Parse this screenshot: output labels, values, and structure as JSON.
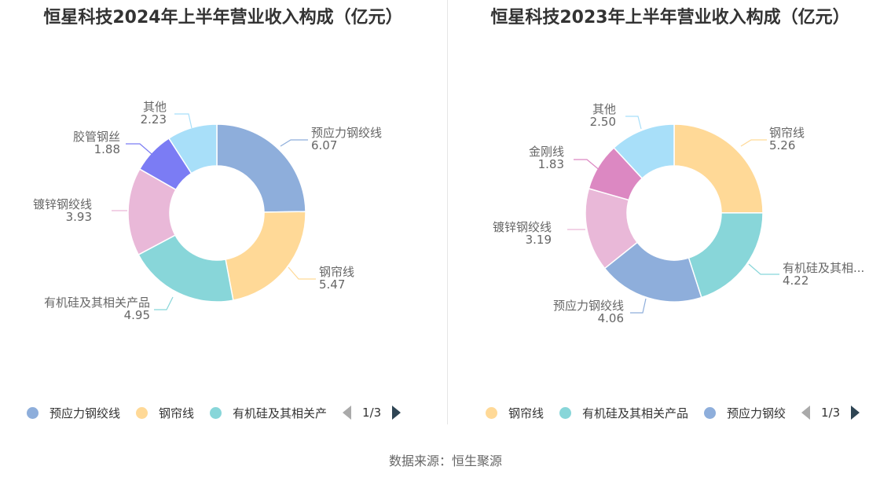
{
  "chart_data": [
    {
      "type": "pie",
      "title": "恒星科技2024年上半年营业收入构成（亿元）",
      "slices": [
        {
          "label": "预应力钢绞线",
          "value": 6.07,
          "value_text": "6.07",
          "color": "#8eaedb"
        },
        {
          "label": "钢帘线",
          "value": 5.47,
          "value_text": "5.47",
          "color": "#ffd997"
        },
        {
          "label": "有机硅及其相关产品",
          "value": 4.95,
          "value_text": "4.95",
          "color": "#88d6d9"
        },
        {
          "label": "镀锌钢绞线",
          "value": 3.93,
          "value_text": "3.93",
          "color": "#e9b8d8"
        },
        {
          "label": "胶管钢丝",
          "value": 1.88,
          "value_text": "1.88",
          "color": "#7b7cf4"
        },
        {
          "label": "其他",
          "value": 2.23,
          "value_text": "2.23",
          "color": "#a8dff9"
        }
      ],
      "legend": {
        "items": [
          {
            "label": "预应力钢绞线",
            "color": "#8eaedb"
          },
          {
            "label": "钢帘线",
            "color": "#ffd997"
          },
          {
            "label": "有机硅及其相关产",
            "color": "#88d6d9"
          }
        ],
        "page": "1/3",
        "position": "bottom"
      }
    },
    {
      "type": "pie",
      "title": "恒星科技2023年上半年营业收入构成（亿元）",
      "slices": [
        {
          "label": "钢帘线",
          "value": 5.26,
          "value_text": "5.26",
          "color": "#ffd997"
        },
        {
          "label": "有机硅及其相...",
          "value": 4.22,
          "value_text": "4.22",
          "color": "#88d6d9"
        },
        {
          "label": "预应力钢绞线",
          "value": 4.06,
          "value_text": "4.06",
          "color": "#8eaedb"
        },
        {
          "label": "镀锌钢绞线",
          "value": 3.19,
          "value_text": "3.19",
          "color": "#e9b8d8"
        },
        {
          "label": "金刚线",
          "value": 1.83,
          "value_text": "1.83",
          "color": "#dc88c2"
        },
        {
          "label": "其他",
          "value": 2.5,
          "value_text": "2.50",
          "color": "#a8dff9"
        }
      ],
      "legend": {
        "items": [
          {
            "label": "钢帘线",
            "color": "#ffd997"
          },
          {
            "label": "有机硅及其相关产品",
            "color": "#88d6d9"
          },
          {
            "label": "预应力钢绞",
            "color": "#8eaedb"
          }
        ],
        "page": "1/3",
        "position": "bottom"
      }
    }
  ],
  "source": "数据来源：恒生聚源"
}
